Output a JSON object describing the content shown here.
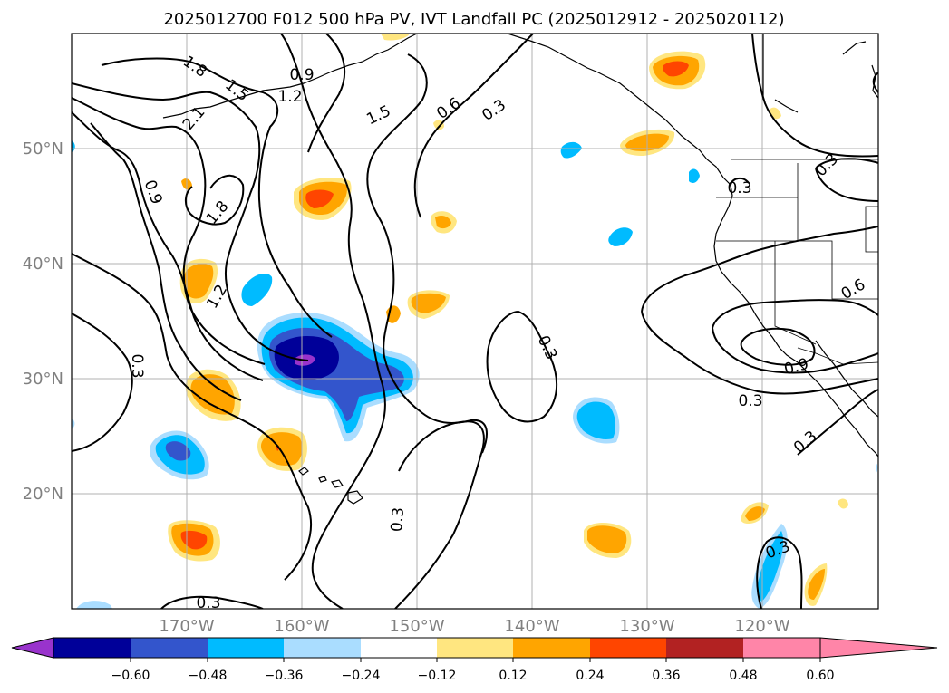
{
  "title": "2025012700 F012 500 hPa PV, IVT Landfall PC (2025012912 - 2025020112)",
  "lat_labels": [
    "50°N",
    "40°N",
    "30°N",
    "20°N"
  ],
  "lon_labels": [
    "170°W",
    "160°W",
    "150°W",
    "140°W",
    "130°W",
    "120°W"
  ],
  "colorbar": {
    "ticks": [
      "−0.60",
      "−0.48",
      "−0.36",
      "−0.24",
      "−0.12",
      "0.12",
      "0.24",
      "0.36",
      "0.48",
      "0.60"
    ],
    "colors": [
      "#9933cc",
      "#000099",
      "#3355cc",
      "#00bbff",
      "#aaddff",
      "#ffffff",
      "#ffe680",
      "#ffa500",
      "#ff4500",
      "#b22222",
      "#ff85a8"
    ]
  },
  "contour_labels": [
    "1.8",
    "1.5",
    "0.9",
    "1.2",
    "2.1",
    "1.5",
    "0.6",
    "0.3",
    "0.9",
    "1.8",
    "1.2",
    "0.3",
    "0.3",
    "0.3",
    "0.3",
    "0.3",
    "0.6",
    "0.9",
    "0.3",
    "0.3",
    "0.3",
    "0.3"
  ],
  "shading_colors": {
    "neg_light": "#aaddff",
    "neg_mid": "#00bbff",
    "neg_strong": "#3355cc",
    "neg_deep": "#000099",
    "neg_max": "#9933cc",
    "pos_light": "#ffe680",
    "pos_mid": "#ffa500",
    "pos_strong": "#ff4500"
  }
}
